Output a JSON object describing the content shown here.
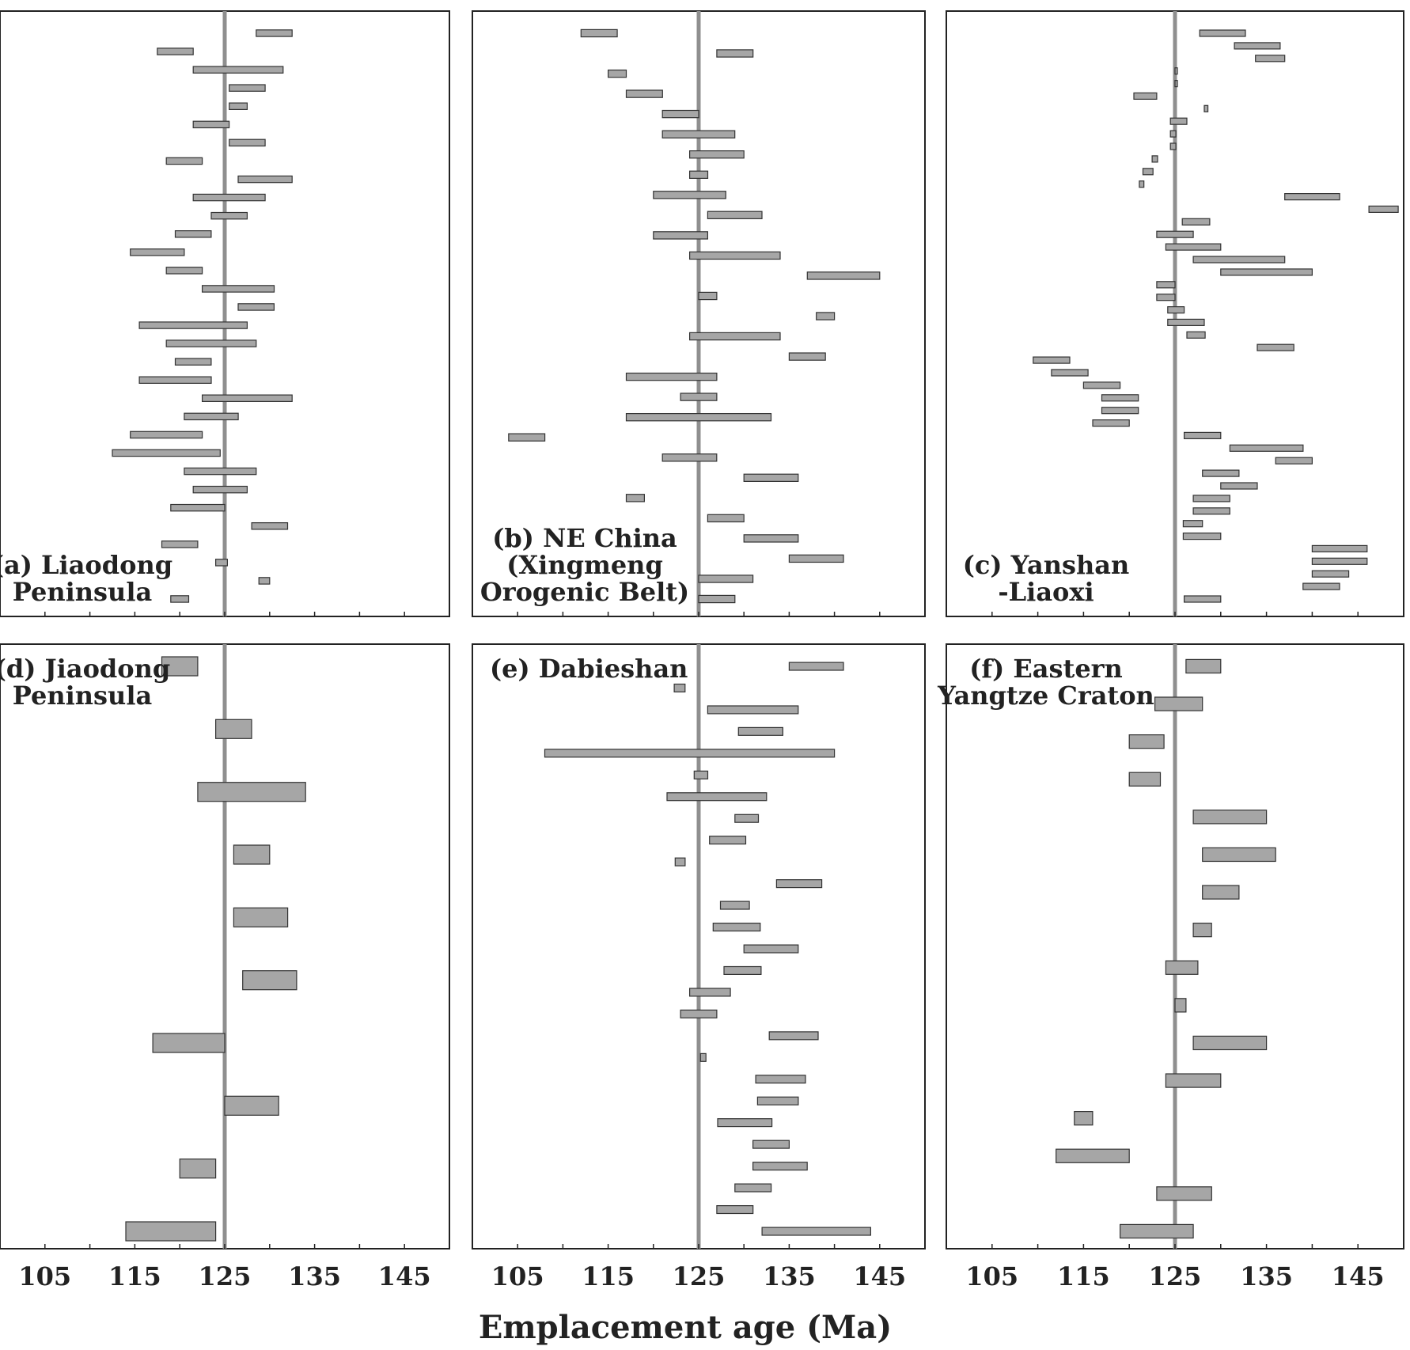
{
  "chart_data": {
    "type": "bar",
    "xlabel": "Emplacement age (Ma)",
    "xlim": [
      100,
      150
    ],
    "xticks": [
      105,
      115,
      125,
      135,
      145
    ],
    "reference_line": 125,
    "bar_color": "#a6a6a6",
    "panels": [
      {
        "label_lines": [
          "(a) Liaodong",
          "Peninsula"
        ],
        "label_position": "bottom-left",
        "ranges": [
          [
            128.5,
            132.5
          ],
          [
            117.5,
            121.5
          ],
          [
            121.5,
            131.5
          ],
          [
            125.5,
            129.5
          ],
          [
            125.5,
            127.5
          ],
          [
            121.5,
            125.5
          ],
          [
            125.5,
            129.5
          ],
          [
            118.5,
            122.5
          ],
          [
            126.5,
            132.5
          ],
          [
            121.5,
            129.5
          ],
          [
            123.5,
            127.5
          ],
          [
            119.5,
            123.5
          ],
          [
            114.5,
            120.5
          ],
          [
            118.5,
            122.5
          ],
          [
            122.5,
            130.5
          ],
          [
            126.5,
            130.5
          ],
          [
            115.5,
            127.5
          ],
          [
            118.5,
            128.5
          ],
          [
            119.5,
            123.5
          ],
          [
            115.5,
            123.5
          ],
          [
            122.5,
            132.5
          ],
          [
            120.5,
            126.5
          ],
          [
            114.5,
            122.5
          ],
          [
            112.5,
            124.5
          ],
          [
            120.5,
            128.5
          ],
          [
            121.5,
            127.5
          ],
          [
            119,
            125
          ],
          [
            128,
            132
          ],
          [
            118,
            122
          ],
          [
            124,
            125.3
          ],
          [
            128.8,
            130
          ],
          [
            119,
            121
          ]
        ]
      },
      {
        "label_lines": [
          "(b) NE China",
          "(Xingmeng",
          "Orogenic Belt)"
        ],
        "label_position": "bottom-left",
        "ranges": [
          [
            112,
            116
          ],
          [
            127,
            131
          ],
          [
            115,
            117
          ],
          [
            117,
            121
          ],
          [
            121,
            125
          ],
          [
            121,
            129
          ],
          [
            124,
            130
          ],
          [
            124,
            126
          ],
          [
            120,
            128
          ],
          [
            126,
            132
          ],
          [
            120,
            126
          ],
          [
            124,
            134
          ],
          [
            137,
            145
          ],
          [
            125,
            127
          ],
          [
            138,
            140
          ],
          [
            124,
            134
          ],
          [
            135,
            139
          ],
          [
            117,
            127
          ],
          [
            123,
            127
          ],
          [
            117,
            133
          ],
          [
            104,
            108
          ],
          [
            121,
            127
          ],
          [
            130,
            136
          ],
          [
            117,
            119
          ],
          [
            126,
            130
          ],
          [
            130,
            136
          ],
          [
            135,
            141
          ],
          [
            125,
            131
          ],
          [
            125,
            129
          ]
        ]
      },
      {
        "label_lines": [
          "(c) Yanshan",
          "-Liaoxi"
        ],
        "label_position": "bottom-left",
        "ranges": [
          [
            127.7,
            132.7
          ],
          [
            131.5,
            136.5
          ],
          [
            133.8,
            137
          ],
          [
            125,
            125.2
          ],
          [
            125,
            125.2
          ],
          [
            120.5,
            123
          ],
          [
            128.2,
            128.6
          ],
          [
            124.5,
            126.3
          ],
          [
            124.5,
            125.1
          ],
          [
            124.5,
            125.1
          ],
          [
            122.5,
            123.1
          ],
          [
            121.5,
            122.6
          ],
          [
            121.1,
            121.6
          ],
          [
            137,
            143
          ],
          [
            146.2,
            149.4
          ],
          [
            125.8,
            128.8
          ],
          [
            123,
            127
          ],
          [
            124,
            130
          ],
          [
            127,
            137
          ],
          [
            130,
            140
          ],
          [
            123,
            125
          ],
          [
            123,
            125
          ],
          [
            124.2,
            126
          ],
          [
            124.2,
            128.2
          ],
          [
            126.3,
            128.3
          ],
          [
            134,
            138
          ],
          [
            109.5,
            113.5
          ],
          [
            111.5,
            115.5
          ],
          [
            115,
            119
          ],
          [
            117,
            121
          ],
          [
            117,
            121
          ],
          [
            116,
            120
          ],
          [
            126,
            130
          ],
          [
            131,
            139
          ],
          [
            136,
            140
          ],
          [
            128,
            132
          ],
          [
            130,
            134
          ],
          [
            127,
            131
          ],
          [
            127,
            131
          ],
          [
            125.9,
            128
          ],
          [
            125.9,
            130
          ],
          [
            140,
            146
          ],
          [
            140,
            146
          ],
          [
            140,
            144
          ],
          [
            139,
            143
          ],
          [
            126,
            130
          ]
        ]
      },
      {
        "label_lines": [
          "(d) Jiaodong",
          "Peninsula"
        ],
        "label_position": "top-left",
        "ranges": [
          [
            118,
            122
          ],
          [
            124,
            128
          ],
          [
            122,
            134
          ],
          [
            126,
            130
          ],
          [
            126,
            132
          ],
          [
            127,
            133
          ],
          [
            117,
            125
          ],
          [
            125,
            131
          ],
          [
            120,
            124
          ],
          [
            114,
            124
          ]
        ]
      },
      {
        "label_lines": [
          "(e) Dabieshan"
        ],
        "label_position": "top-left",
        "ranges": [
          [
            135,
            141
          ],
          [
            122.3,
            123.5
          ],
          [
            126,
            136
          ],
          [
            129.4,
            134.3
          ],
          [
            108,
            140
          ],
          [
            124.5,
            126
          ],
          [
            121.5,
            132.5
          ],
          [
            129,
            131.6
          ],
          [
            126.2,
            130.2
          ],
          [
            122.4,
            123.5
          ],
          [
            133.6,
            138.6
          ],
          [
            127.4,
            130.6
          ],
          [
            126.6,
            131.8
          ],
          [
            130,
            136
          ],
          [
            127.8,
            131.9
          ],
          [
            124,
            128.5
          ],
          [
            123,
            127
          ],
          [
            132.8,
            138.2
          ],
          [
            125.2,
            125.8
          ],
          [
            131.3,
            136.8
          ],
          [
            131.5,
            136
          ],
          [
            127.1,
            133.1
          ],
          [
            131,
            135
          ],
          [
            131,
            137
          ],
          [
            129,
            133
          ],
          [
            127,
            131
          ],
          [
            132,
            144
          ]
        ]
      },
      {
        "label_lines": [
          "(f) Eastern",
          "Yangtze Craton"
        ],
        "label_position": "top-left",
        "ranges": [
          [
            126.2,
            130
          ],
          [
            122.8,
            128
          ],
          [
            120,
            123.8
          ],
          [
            120,
            123.4
          ],
          [
            127,
            135
          ],
          [
            128,
            136
          ],
          [
            128,
            132
          ],
          [
            127,
            129
          ],
          [
            124,
            127.5
          ],
          [
            125,
            126.2
          ],
          [
            127,
            135
          ],
          [
            124,
            130
          ],
          [
            114,
            116
          ],
          [
            112,
            120
          ],
          [
            123,
            129
          ],
          [
            119,
            127
          ]
        ]
      }
    ]
  }
}
